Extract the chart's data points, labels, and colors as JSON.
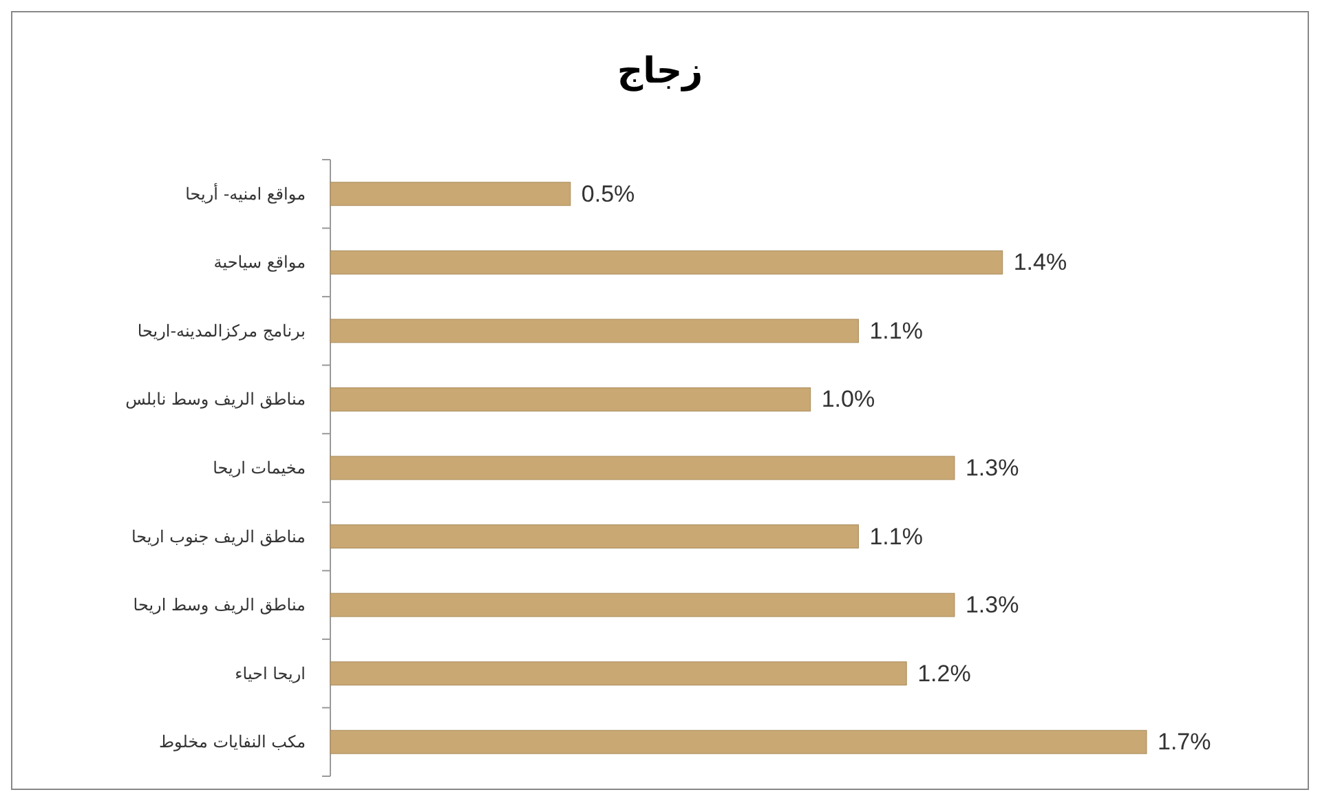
{
  "chart_data": {
    "type": "bar",
    "orientation": "horizontal",
    "title": "زجاج",
    "categories": [
      "مواقع امنيه- أريحا",
      "مواقع سياحية",
      "برنامج مركزالمدينه-اريحا",
      "مناطق الريف وسط نابلس",
      "مخيمات اريحا",
      "مناطق الريف جنوب اريحا",
      "مناطق الريف وسط اريحا",
      "اريحا احياء",
      "مكب النفايات مخلوط"
    ],
    "values": [
      0.5,
      1.4,
      1.1,
      1.0,
      1.3,
      1.1,
      1.3,
      1.2,
      1.7
    ],
    "value_labels": [
      "0.5%",
      "1.4%",
      "1.1%",
      "1.0%",
      "1.3%",
      "1.1%",
      "1.3%",
      "1.2%",
      "1.7%"
    ],
    "color": "#c9a874"
  }
}
